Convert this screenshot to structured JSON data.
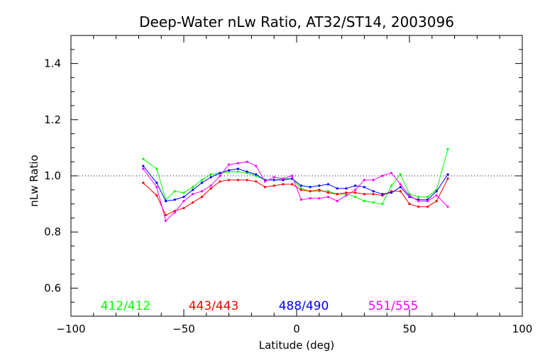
{
  "chart_data": {
    "type": "line",
    "title": "Deep-Water nLw Ratio, AT32/ST14, 2003096",
    "xlabel": "Latitude (deg)",
    "ylabel": "nLw Ratio",
    "xlim": [
      -100,
      100
    ],
    "ylim": [
      0.5,
      1.5
    ],
    "x_ticks": [
      -100,
      -50,
      0,
      50,
      100
    ],
    "x_tick_labels": [
      "−100",
      "−50",
      "0",
      "50",
      "100"
    ],
    "y_ticks": [
      0.6,
      0.8,
      1.0,
      1.2,
      1.4
    ],
    "y_tick_labels": [
      "0.6",
      "0.8",
      "1.0",
      "1.2",
      "1.4"
    ],
    "reference_line": 1.0,
    "grid": false,
    "legend_placement": "bottom, inside plot",
    "series": [
      {
        "name": "412/412",
        "color": "#00ff00",
        "x": [
          -68,
          -62,
          -58,
          -54,
          -50,
          -46,
          -42,
          -38,
          -34,
          -30,
          -26,
          -22,
          -18,
          -14,
          -10,
          -6,
          -2,
          2,
          6,
          10,
          14,
          18,
          22,
          26,
          30,
          34,
          38,
          42,
          46,
          50,
          54,
          58,
          62,
          67
        ],
        "y": [
          1.06,
          1.025,
          0.915,
          0.945,
          0.94,
          0.96,
          0.985,
          1.005,
          1.01,
          1.015,
          1.015,
          1.01,
          1.0,
          0.985,
          0.985,
          0.99,
          0.99,
          0.955,
          0.945,
          0.945,
          0.945,
          0.935,
          0.935,
          0.925,
          0.91,
          0.905,
          0.9,
          0.965,
          1.005,
          0.935,
          0.925,
          0.925,
          0.95,
          1.095
        ]
      },
      {
        "name": "443/443",
        "color": "#ff0000",
        "x": [
          -68,
          -62,
          -58,
          -54,
          -50,
          -46,
          -42,
          -38,
          -34,
          -30,
          -26,
          -22,
          -18,
          -14,
          -10,
          -6,
          -2,
          2,
          6,
          10,
          14,
          18,
          22,
          26,
          30,
          34,
          38,
          42,
          46,
          50,
          54,
          58,
          62,
          67
        ],
        "y": [
          0.975,
          0.93,
          0.86,
          0.875,
          0.885,
          0.905,
          0.925,
          0.955,
          0.98,
          0.985,
          0.985,
          0.985,
          0.98,
          0.96,
          0.965,
          0.97,
          0.97,
          0.95,
          0.945,
          0.95,
          0.94,
          0.935,
          0.94,
          0.94,
          0.935,
          0.935,
          0.93,
          0.945,
          0.945,
          0.9,
          0.89,
          0.89,
          0.91,
          0.99
        ]
      },
      {
        "name": "488/490",
        "color": "#0000ff",
        "x": [
          -68,
          -62,
          -58,
          -54,
          -50,
          -46,
          -42,
          -38,
          -34,
          -30,
          -26,
          -22,
          -18,
          -14,
          -10,
          -6,
          -2,
          2,
          6,
          10,
          14,
          18,
          22,
          26,
          30,
          34,
          38,
          42,
          46,
          50,
          54,
          58,
          62,
          67
        ],
        "y": [
          1.035,
          0.975,
          0.91,
          0.915,
          0.925,
          0.95,
          0.975,
          0.995,
          1.01,
          1.02,
          1.025,
          1.015,
          1.005,
          0.985,
          0.985,
          0.985,
          0.99,
          0.965,
          0.96,
          0.965,
          0.97,
          0.955,
          0.955,
          0.965,
          0.96,
          0.945,
          0.935,
          0.94,
          0.96,
          0.925,
          0.915,
          0.915,
          0.945,
          1.005
        ]
      },
      {
        "name": "551/555",
        "color": "#ff00ff",
        "x": [
          -68,
          -62,
          -58,
          -54,
          -50,
          -46,
          -42,
          -38,
          -34,
          -30,
          -26,
          -22,
          -18,
          -14,
          -10,
          -6,
          -2,
          2,
          6,
          10,
          14,
          18,
          22,
          26,
          30,
          34,
          38,
          42,
          46,
          50,
          54,
          58,
          62,
          67
        ],
        "y": [
          1.025,
          0.96,
          0.84,
          0.87,
          0.91,
          0.935,
          0.945,
          0.965,
          1.0,
          1.04,
          1.045,
          1.05,
          1.035,
          0.98,
          0.995,
          0.99,
          1.0,
          0.915,
          0.92,
          0.92,
          0.925,
          0.91,
          0.93,
          0.95,
          0.985,
          0.985,
          1.0,
          1.01,
          0.97,
          0.93,
          0.91,
          0.91,
          0.93,
          0.89
        ]
      }
    ]
  }
}
